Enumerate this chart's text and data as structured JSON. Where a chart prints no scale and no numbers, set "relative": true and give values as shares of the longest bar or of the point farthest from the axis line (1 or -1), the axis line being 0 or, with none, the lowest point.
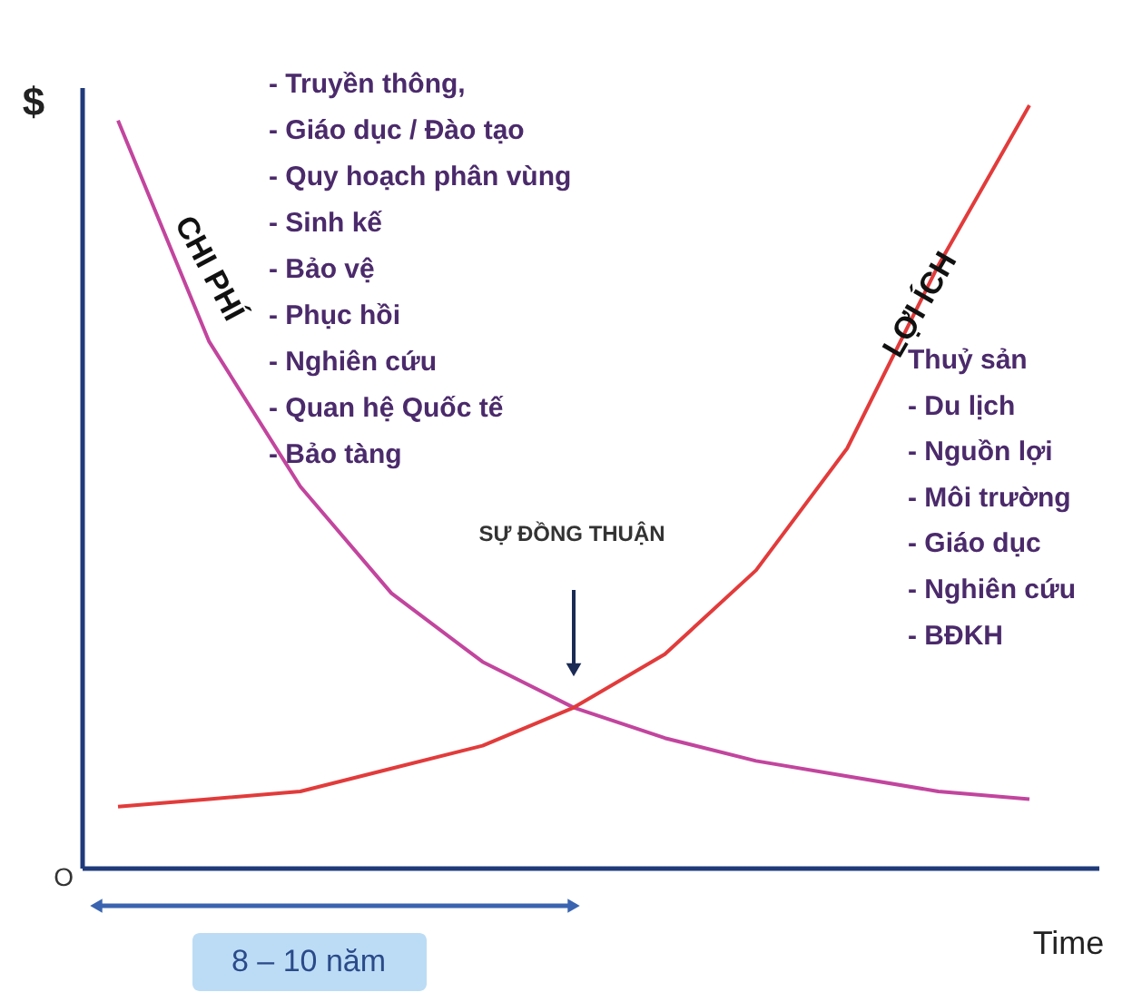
{
  "chart_data": {
    "type": "line",
    "relative": true,
    "categories": [
      null,
      null,
      null,
      null,
      null,
      null,
      null,
      null,
      null,
      null,
      null
    ],
    "xlabel": "Time",
    "ylabel": "$",
    "legend": false,
    "grid": false,
    "marker": "none",
    "line_style": "solid",
    "series": [
      {
        "name": "CHI PHÍ",
        "color": "#c2459e",
        "values": [
          0.98,
          0.69,
          0.5,
          0.36,
          0.27,
          0.21,
          0.17,
          0.14,
          0.12,
          0.1,
          0.09
        ]
      },
      {
        "name": "LỢI ÍCH",
        "color": "#e23b3b",
        "values": [
          0.08,
          0.09,
          0.1,
          0.13,
          0.16,
          0.21,
          0.28,
          0.39,
          0.55,
          0.79,
          1.0
        ]
      }
    ],
    "annotations": [
      "O",
      "SỰ ĐỒNG THUẬN",
      "8 – 10 năm",
      "- Truyền thông,",
      "- Giáo dục / Đào tạo",
      "- Quy hoạch phân vùng",
      "- Sinh kế",
      "- Bảo vệ",
      "- Phục hồi",
      "- Nghiên cứu",
      "- Quan hệ Quốc tế",
      "- Bảo tàng",
      "Thuỷ sản",
      "- Du lịch",
      "- Nguồn lợi",
      "- Môi trường",
      "- Giáo dục",
      "- Nghiên cứu",
      "- BĐKH"
    ]
  }
}
